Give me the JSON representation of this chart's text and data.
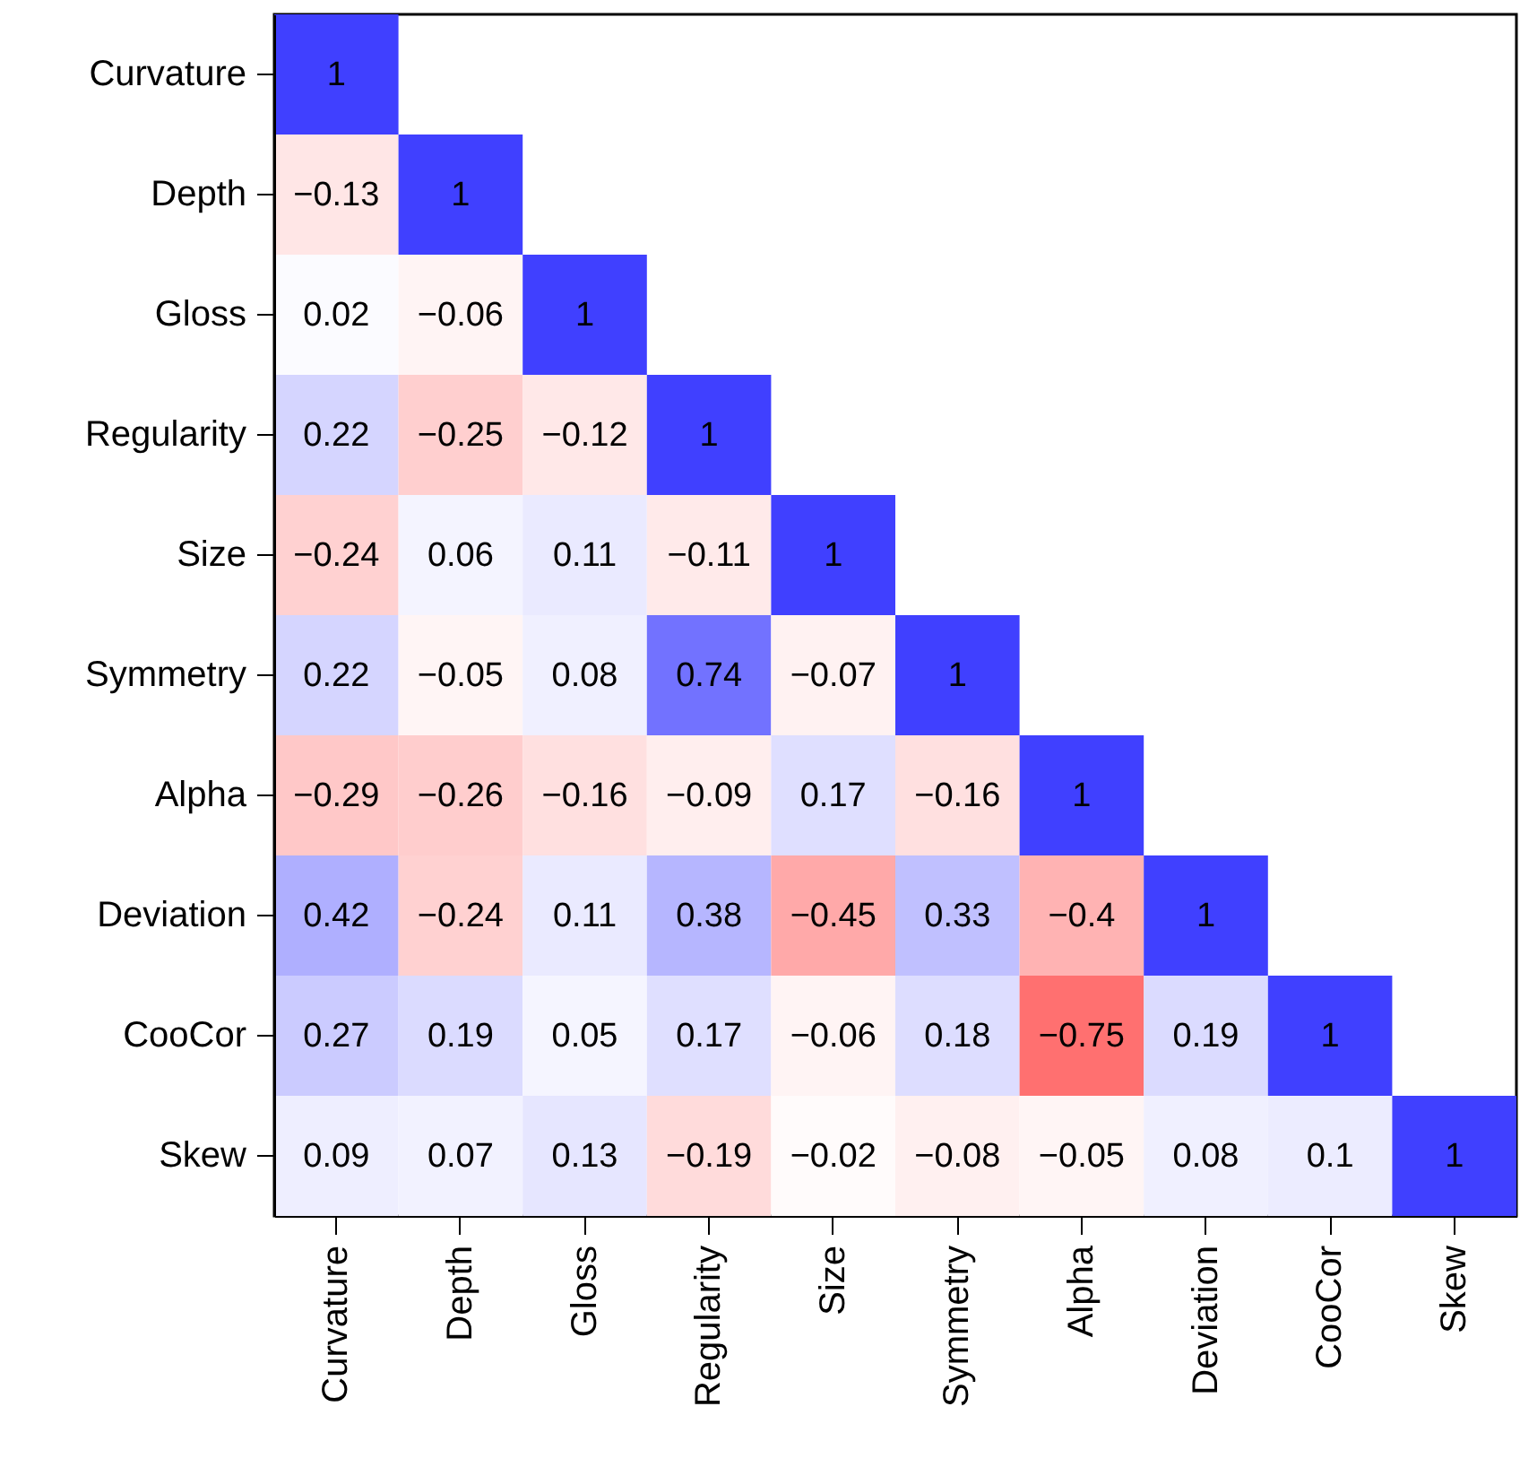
{
  "chart_data": {
    "type": "heatmap",
    "categories": [
      "Curvature",
      "Depth",
      "Gloss",
      "Regularity",
      "Size",
      "Symmetry",
      "Alpha",
      "Deviation",
      "CooCor",
      "Skew"
    ],
    "y_categories": [
      "Curvature",
      "Depth",
      "Gloss",
      "Regularity",
      "Size",
      "Symmetry",
      "Alpha",
      "Deviation",
      "CooCor",
      "Skew"
    ],
    "cells": [
      [
        1,
        null,
        null,
        null,
        null,
        null,
        null,
        null,
        null,
        null
      ],
      [
        -0.13,
        1,
        null,
        null,
        null,
        null,
        null,
        null,
        null,
        null
      ],
      [
        0.02,
        -0.06,
        1,
        null,
        null,
        null,
        null,
        null,
        null,
        null
      ],
      [
        0.22,
        -0.25,
        -0.12,
        1,
        null,
        null,
        null,
        null,
        null,
        null
      ],
      [
        -0.24,
        0.06,
        0.11,
        -0.11,
        1,
        null,
        null,
        null,
        null,
        null
      ],
      [
        0.22,
        -0.05,
        0.08,
        0.74,
        -0.07,
        1,
        null,
        null,
        null,
        null
      ],
      [
        -0.29,
        -0.26,
        -0.16,
        -0.09,
        0.17,
        -0.16,
        1,
        null,
        null,
        null
      ],
      [
        0.42,
        -0.24,
        0.11,
        0.38,
        -0.45,
        0.33,
        -0.4,
        1,
        null,
        null
      ],
      [
        0.27,
        0.19,
        0.05,
        0.17,
        -0.06,
        0.18,
        -0.75,
        0.19,
        1,
        null
      ],
      [
        0.09,
        0.07,
        0.13,
        -0.19,
        -0.02,
        -0.08,
        -0.05,
        0.08,
        0.1,
        1
      ]
    ],
    "cell_labels": [
      [
        "1",
        null,
        null,
        null,
        null,
        null,
        null,
        null,
        null,
        null
      ],
      [
        "−0.13",
        "1",
        null,
        null,
        null,
        null,
        null,
        null,
        null,
        null
      ],
      [
        "0.02",
        "−0.06",
        "1",
        null,
        null,
        null,
        null,
        null,
        null,
        null
      ],
      [
        "0.22",
        "−0.25",
        "−0.12",
        "1",
        null,
        null,
        null,
        null,
        null,
        null
      ],
      [
        "−0.24",
        "0.06",
        "0.11",
        "−0.11",
        "1",
        null,
        null,
        null,
        null,
        null
      ],
      [
        "0.22",
        "−0.05",
        "0.08",
        "0.74",
        "−0.07",
        "1",
        null,
        null,
        null,
        null
      ],
      [
        "−0.29",
        "−0.26",
        "−0.16",
        "−0.09",
        "0.17",
        "−0.16",
        "1",
        null,
        null,
        null
      ],
      [
        "0.42",
        "−0.24",
        "0.11",
        "0.38",
        "−0.45",
        "0.33",
        "−0.4",
        "1",
        null,
        null
      ],
      [
        "0.27",
        "0.19",
        "0.05",
        "0.17",
        "−0.06",
        "0.18",
        "−0.75",
        "0.19",
        "1",
        null
      ],
      [
        "0.09",
        "0.07",
        "0.13",
        "−0.19",
        "−0.02",
        "−0.08",
        "−0.05",
        "0.08",
        "0.1",
        "1"
      ]
    ],
    "data_labels": true
  }
}
